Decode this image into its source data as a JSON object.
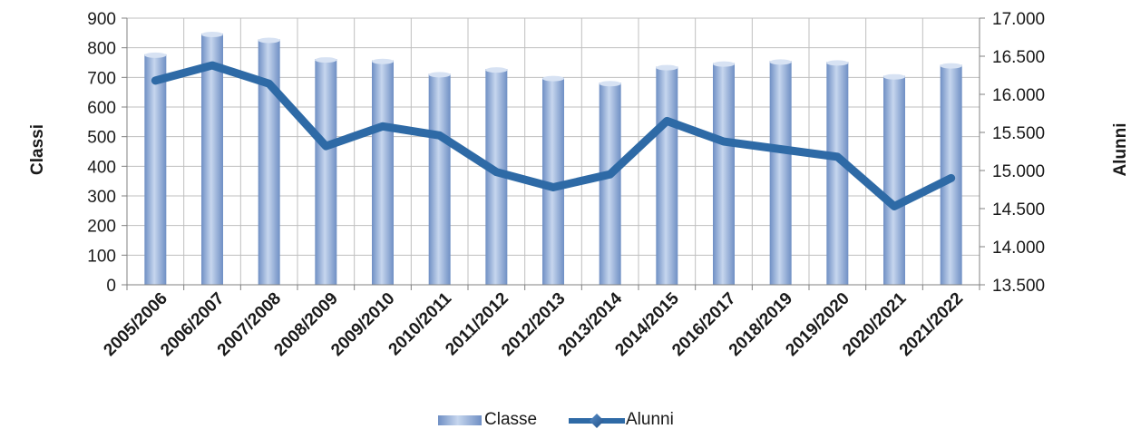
{
  "chart_data": {
    "type": "bar",
    "categories": [
      "2005/2006",
      "2006/2007",
      "2007/2008",
      "2008/2009",
      "2009/2010",
      "2010/2011",
      "2011/2012",
      "2012/2013",
      "2013/2014",
      "2014/2015",
      "2016/2017",
      "2018/2019",
      "2019/2020",
      "2020/2021",
      "2021/2022"
    ],
    "series": [
      {
        "name": "Classe",
        "type": "bar",
        "axis": "left",
        "values": [
          778,
          848,
          828,
          762,
          757,
          712,
          728,
          699,
          682,
          736,
          748,
          755,
          752,
          705,
          742
        ]
      },
      {
        "name": "Alunni",
        "type": "line",
        "axis": "right",
        "values": [
          16180,
          16380,
          16140,
          15320,
          15580,
          15460,
          14980,
          14780,
          14950,
          15650,
          15380,
          15280,
          15180,
          14530,
          14900
        ]
      }
    ],
    "ylabel": "Classi",
    "y2label": "Alunni",
    "ylim": [
      0,
      900
    ],
    "y2lim": [
      13500,
      17000
    ],
    "y_ticks": [
      "0",
      "100",
      "200",
      "300",
      "400",
      "500",
      "600",
      "700",
      "800",
      "900"
    ],
    "y2_ticks": [
      "13.500",
      "14.000",
      "14.500",
      "15.000",
      "15.500",
      "16.000",
      "16.500",
      "17.000"
    ],
    "legend_position": "bottom",
    "grid": true,
    "colors": {
      "bar": "#8faad8",
      "line": "#2e6aa6"
    }
  }
}
